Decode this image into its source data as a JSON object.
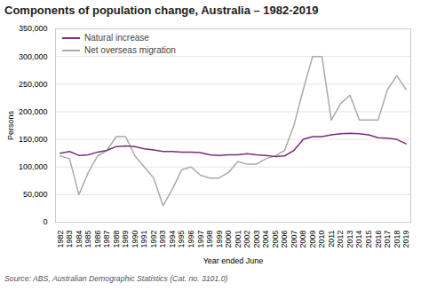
{
  "chart_data": {
    "type": "line",
    "title": "Components of population change, Australia – 1982-2019",
    "xlabel": "Year ended June",
    "ylabel": "Persons",
    "source": "Source:  ABS, Australian Demographic Statistics (Cat. no. 3101.0)",
    "x": [
      1982,
      1983,
      1984,
      1985,
      1986,
      1987,
      1988,
      1989,
      1990,
      1991,
      1992,
      1993,
      1994,
      1995,
      1996,
      1997,
      1998,
      1999,
      2000,
      2001,
      2002,
      2003,
      2004,
      2005,
      2006,
      2007,
      2008,
      2009,
      2010,
      2011,
      2012,
      2013,
      2014,
      2015,
      2016,
      2017,
      2018,
      2019
    ],
    "series": [
      {
        "name": "Natural increase",
        "color": "#7b2d7b",
        "values": [
          125000,
          128000,
          121000,
          122000,
          127000,
          130000,
          137000,
          138000,
          137000,
          133000,
          131000,
          128000,
          128000,
          127000,
          127000,
          126000,
          122000,
          121000,
          122000,
          122000,
          124000,
          122000,
          121000,
          119000,
          120000,
          130000,
          150000,
          155000,
          155000,
          158000,
          160000,
          161000,
          160000,
          158000,
          153000,
          152000,
          150000,
          142000
        ]
      },
      {
        "name": "Net overseas migration",
        "color": "#aaaaaa",
        "values": [
          120000,
          115000,
          50000,
          90000,
          120000,
          130000,
          155000,
          155000,
          120000,
          100000,
          80000,
          30000,
          60000,
          95000,
          100000,
          85000,
          80000,
          80000,
          90000,
          110000,
          105000,
          105000,
          115000,
          120000,
          130000,
          175000,
          240000,
          300000,
          300000,
          185000,
          215000,
          230000,
          185000,
          185000,
          185000,
          240000,
          265000,
          240000
        ]
      }
    ],
    "xlim": [
      1981.5,
      2019.5
    ],
    "xticks": [
      1982,
      1983,
      1984,
      1985,
      1986,
      1987,
      1988,
      1989,
      1990,
      1991,
      1992,
      1993,
      1994,
      1995,
      1996,
      1997,
      1998,
      1999,
      2000,
      2001,
      2002,
      2003,
      2004,
      2005,
      2006,
      2007,
      2008,
      2009,
      2010,
      2011,
      2012,
      2013,
      2014,
      2015,
      2016,
      2017,
      2018,
      2019
    ],
    "ylim": [
      0,
      350000
    ],
    "yticks": [
      0,
      {
        "value": 50000,
        "label": "50,000"
      },
      {
        "value": 100000,
        "label": "100,000"
      },
      {
        "value": 150000,
        "label": "150,000"
      },
      {
        "value": 200000,
        "label": "200,000"
      },
      {
        "value": 250000,
        "label": "250,000"
      },
      {
        "value": 300000,
        "label": "300,000"
      },
      {
        "value": 350000,
        "label": "350,000"
      }
    ],
    "grid": true,
    "legend": "upper left"
  }
}
